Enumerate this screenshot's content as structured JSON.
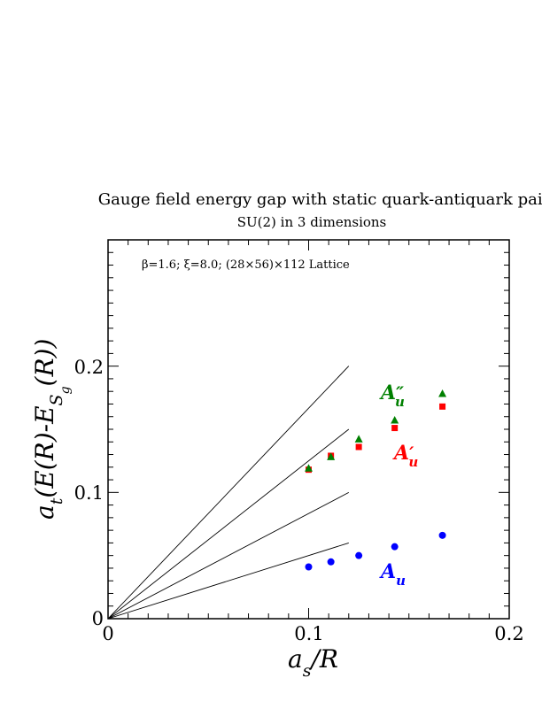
{
  "chart_data": {
    "type": "scatter",
    "title": "Gauge field energy gap with static quark-antiquark pair",
    "subtitle": "SU(2) in 3 dimensions",
    "annotation": "β=1.6;  ξ=8.0;  (28×56)×112 Lattice",
    "xlabel": "a_s/R",
    "ylabel": "a_t(E(R)-E_Sg(R))",
    "xlim": [
      0,
      0.2
    ],
    "ylim": [
      0,
      0.3
    ],
    "x_ticks": [
      "0",
      "0.1",
      "0.2"
    ],
    "y_ticks": [
      "0",
      "0.1",
      "0.2"
    ],
    "grid": false,
    "series": [
      {
        "name": "A_u",
        "color": "#0000ff",
        "marker": "circle",
        "x": [
          0.1,
          0.1111,
          0.125,
          0.1429,
          0.1667
        ],
        "y": [
          0.041,
          0.045,
          0.05,
          0.057,
          0.066
        ]
      },
      {
        "name": "A'_u",
        "color": "#ff0000",
        "marker": "square",
        "x": [
          0.1,
          0.1111,
          0.125,
          0.1429,
          0.1667
        ],
        "y": [
          0.118,
          0.129,
          0.136,
          0.151,
          0.168
        ]
      },
      {
        "name": "A''_u",
        "color": "#008000",
        "marker": "triangle",
        "x": [
          0.1,
          0.1111,
          0.125,
          0.1429,
          0.1667
        ],
        "y": [
          0.119,
          0.128,
          0.142,
          0.157,
          0.178
        ]
      }
    ],
    "reference_lines": [
      {
        "slope": 0.5,
        "x_end": 0.12
      },
      {
        "slope": 0.833,
        "x_end": 0.12
      },
      {
        "slope": 1.25,
        "x_end": 0.12
      },
      {
        "slope": 1.667,
        "x_end": 0.12
      }
    ]
  },
  "labels": {
    "series_A_u_base": "A",
    "series_A_u_sub": "u",
    "series_A_u_prime": "A",
    "series_A_u_prime_sub": "u",
    "series_A_u_prime_mark": "′",
    "series_A_u_dprime": "A",
    "series_A_u_dprime_sub": "u",
    "series_A_u_dprime_mark": "″",
    "xlabel_main": "a",
    "xlabel_sub": "s",
    "xlabel_rest": "/R",
    "ylabel_a": "a",
    "ylabel_t": "t",
    "ylabel_mid": "(E(R)-E",
    "ylabel_S": "S",
    "ylabel_g": "g",
    "ylabel_end": "(R))"
  }
}
